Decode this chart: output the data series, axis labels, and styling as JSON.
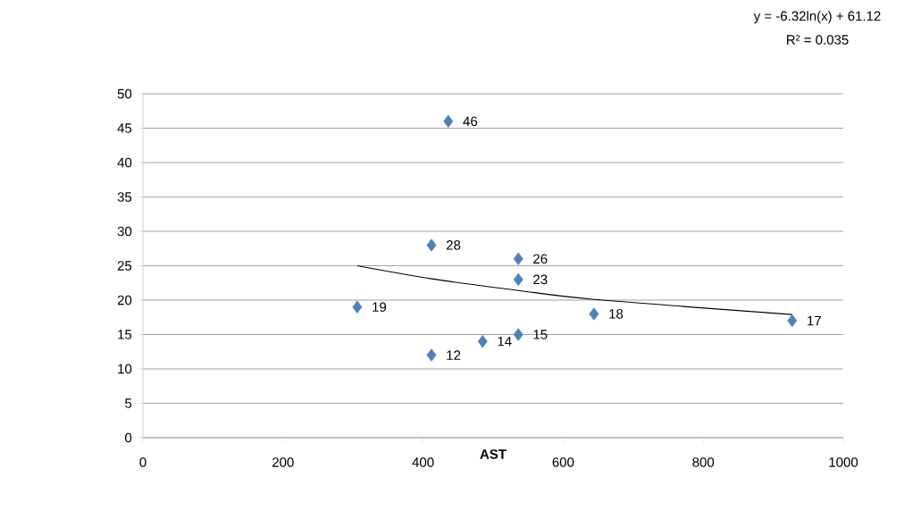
{
  "chart_data": {
    "type": "scatter",
    "xlabel": "AST",
    "x": [
      306,
      412,
      412,
      436,
      485,
      536,
      536,
      536,
      644,
      927
    ],
    "series": [
      {
        "color": "#4f81bd",
        "marker": "diamond",
        "values": [
          19,
          28,
          12,
          46,
          14,
          26,
          23,
          15,
          18,
          17
        ],
        "value_labels": [
          "19",
          "28",
          "12",
          "46",
          "14",
          "26",
          "23",
          "15",
          "18",
          "17"
        ]
      },
      {
        "type": "line",
        "color": "#000000",
        "x": [
          306,
          412,
          536,
          644,
          927
        ],
        "values": [
          25,
          23.1,
          21.4,
          20.1,
          17.9
        ]
      }
    ],
    "xlim": [
      0,
      1000
    ],
    "xticks": [
      0,
      200,
      400,
      600,
      800,
      1000
    ],
    "ylim": [
      0,
      50
    ],
    "yticks": [
      0,
      5,
      10,
      15,
      20,
      25,
      30,
      35,
      40,
      45,
      50
    ],
    "grid": "y",
    "annotations": [
      "y = -6.32ln(x) + 61.12",
      "R² = 0.035"
    ]
  }
}
